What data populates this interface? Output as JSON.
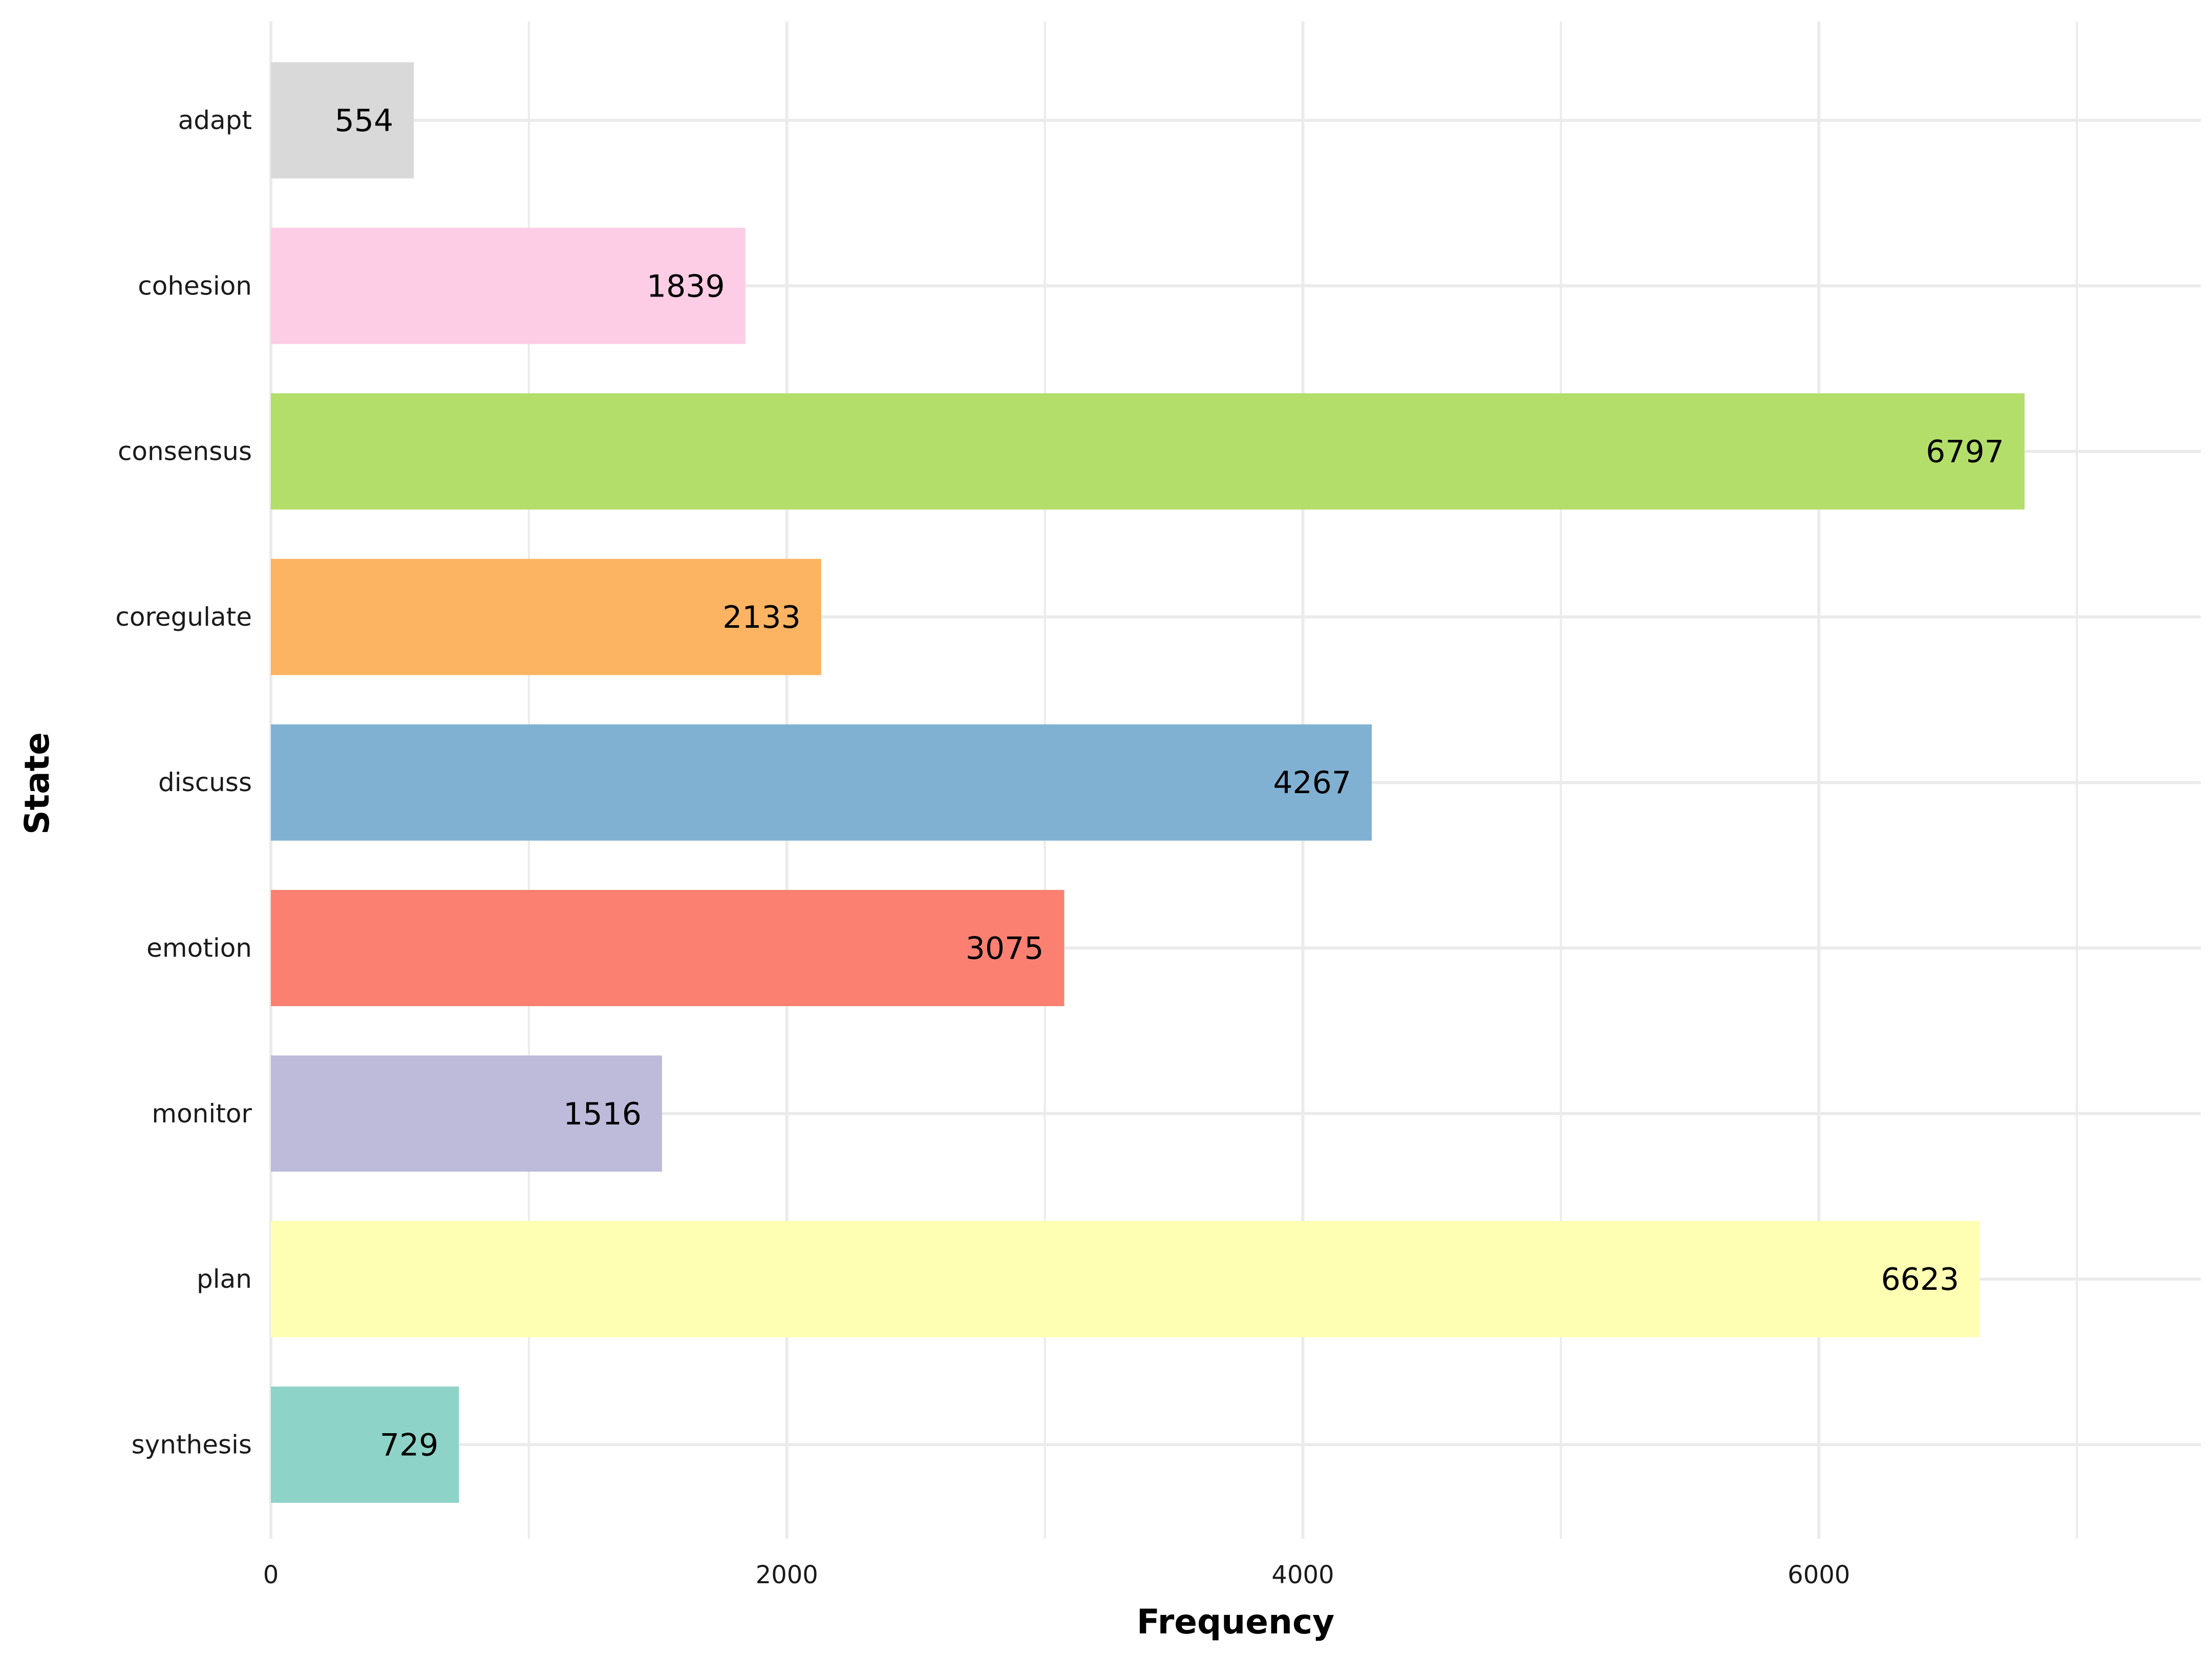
{
  "chart_data": {
    "type": "bar",
    "orientation": "horizontal",
    "xlabel": "Frequency",
    "ylabel": "State",
    "xlim": [
      0,
      7480
    ],
    "xticks": [
      0,
      2000,
      4000,
      6000
    ],
    "grid": true,
    "categories": [
      "adapt",
      "cohesion",
      "consensus",
      "coregulate",
      "discuss",
      "emotion",
      "monitor",
      "plan",
      "synthesis"
    ],
    "values": [
      554,
      1839,
      6797,
      2133,
      4267,
      3075,
      1516,
      6623,
      729
    ],
    "colors": [
      "#d9d9d9",
      "#fccde5",
      "#b3de69",
      "#fdb462",
      "#80b1d3",
      "#fb8072",
      "#bebada",
      "#ffffb3",
      "#8dd3c7"
    ],
    "data_labels": true
  }
}
